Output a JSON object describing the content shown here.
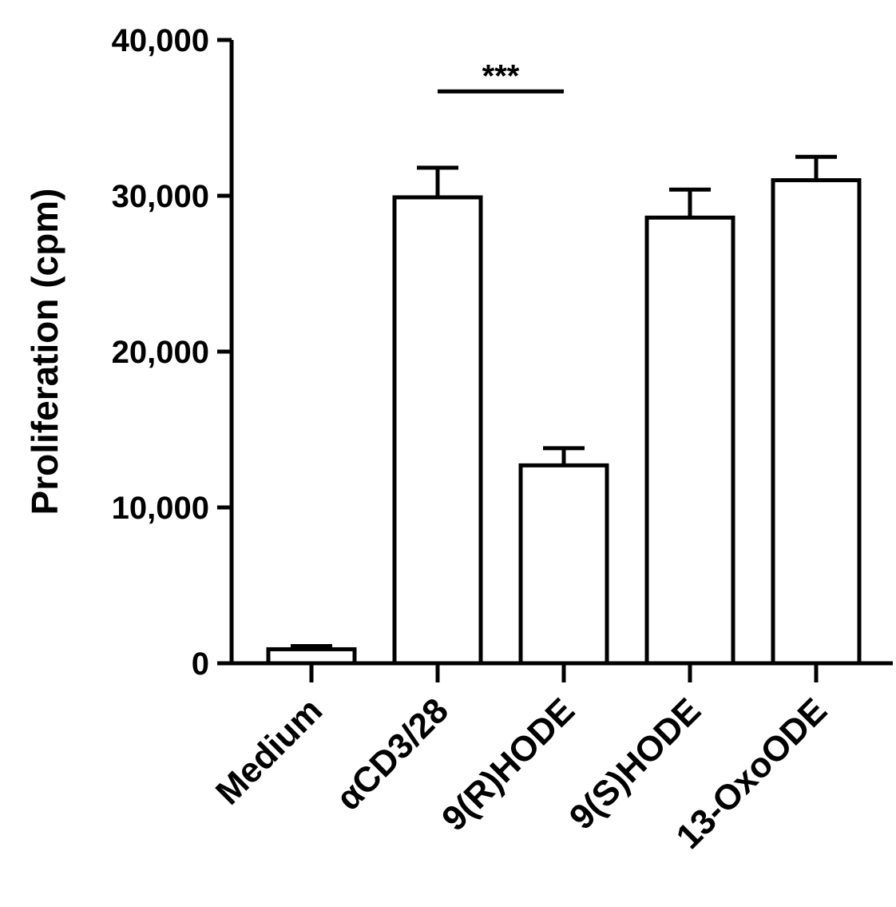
{
  "chart_data": {
    "type": "bar",
    "title": "",
    "xlabel": "",
    "ylabel": "Proliferation (cpm)",
    "ylim": [
      0,
      40000
    ],
    "yticks": [
      0,
      10000,
      20000,
      30000,
      40000
    ],
    "ytick_labels": [
      "0",
      "10,000",
      "20,000",
      "30,000",
      "40,000"
    ],
    "categories": [
      "Medium",
      "αCD3/28",
      "9(R)HODE",
      "9(S)HODE",
      "13-OxoODE"
    ],
    "values": [
      900,
      29900,
      12700,
      28600,
      31000
    ],
    "errors": [
      200,
      1900,
      1100,
      1800,
      1500
    ],
    "bar_fill": "#ffffff",
    "bar_stroke": "#000000",
    "grid": false,
    "legend": "none",
    "annotations": [
      {
        "text": "***",
        "from_category": "αCD3/28",
        "to_category": "9(R)HODE",
        "y": 36700
      }
    ]
  }
}
